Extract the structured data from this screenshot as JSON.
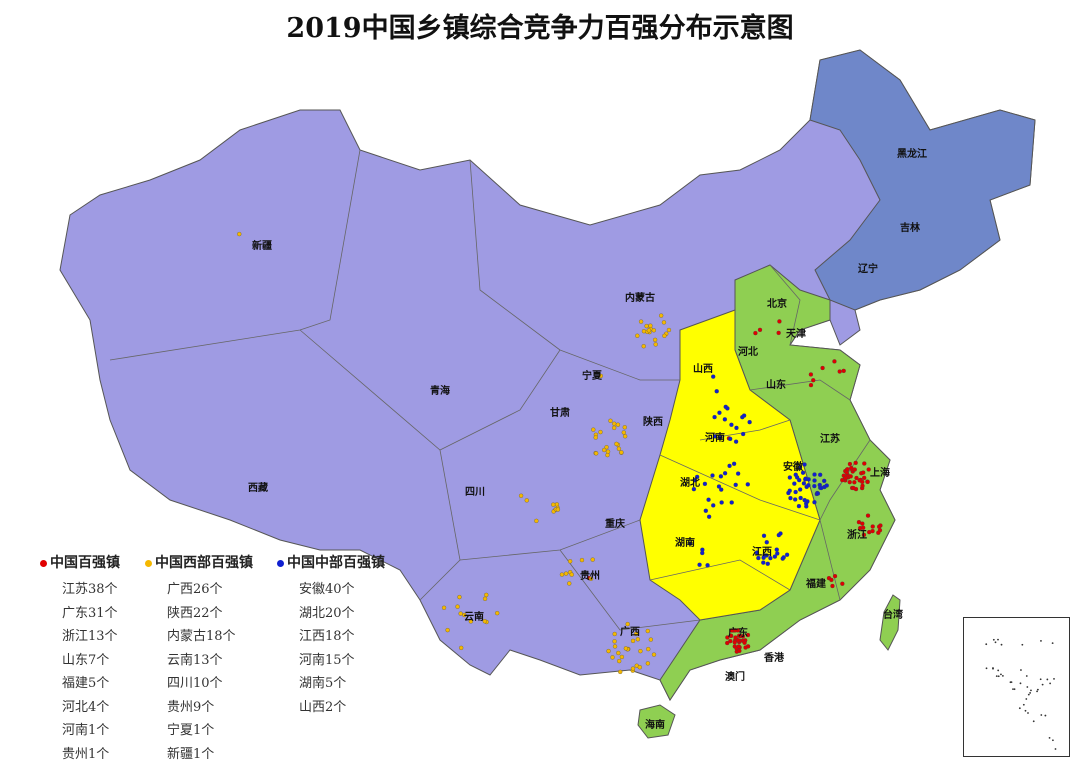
{
  "title": "2019中国乡镇综合竞争力百强分布示意图",
  "colors": {
    "west_region": "#9f9be3",
    "northeast_region": "#6f87c9",
    "east_region": "#8fcf52",
    "central_region": "#ffff00",
    "border": "#555555",
    "red_dot": "#e00000",
    "yellow_dot": "#f5b800",
    "blue_dot": "#1020d0"
  },
  "provinces": [
    "新疆",
    "西藏",
    "青海",
    "内蒙古",
    "甘肃",
    "宁夏",
    "陕西",
    "四川",
    "重庆",
    "云南",
    "贵州",
    "广西",
    "山西",
    "河南",
    "湖北",
    "湖南",
    "江西",
    "安徽",
    "河北",
    "北京",
    "天津",
    "山东",
    "江苏",
    "上海",
    "浙江",
    "福建",
    "广东",
    "香港",
    "澳门",
    "海南",
    "台湾",
    "辽宁",
    "吉林",
    "黑龙江"
  ],
  "legend": [
    {
      "title": "中国百强镇",
      "color": "#e00000",
      "items": [
        "江苏38个",
        "广东31个",
        "浙江13个",
        "山东7个",
        "福建5个",
        "河北4个",
        "河南1个",
        "贵州1个"
      ]
    },
    {
      "title": "中国西部百强镇",
      "color": "#f5b800",
      "items": [
        "广西26个",
        "陕西22个",
        "内蒙古18个",
        "云南13个",
        "四川10个",
        "贵州9个",
        "宁夏1个",
        "新疆1个"
      ]
    },
    {
      "title": "中国中部百强镇",
      "color": "#1020d0",
      "items": [
        "安徽40个",
        "湖北20个",
        "江西18个",
        "河南15个",
        "湖南5个",
        "山西2个"
      ]
    }
  ]
}
